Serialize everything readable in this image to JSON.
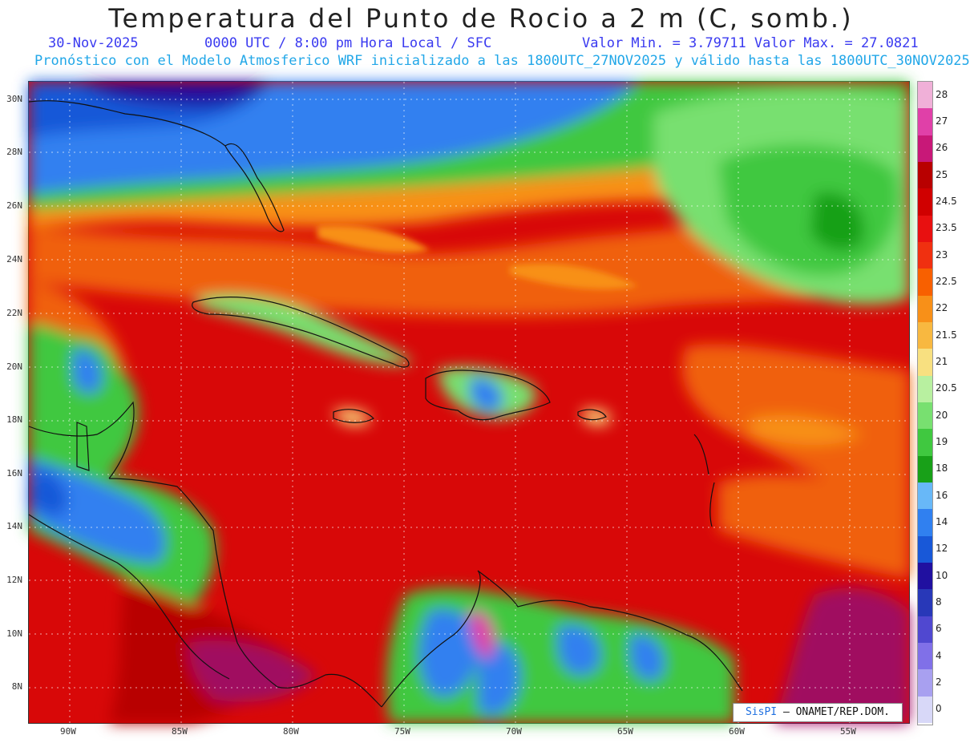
{
  "header": {
    "title": "Temperatura del Punto de Rocio a 2 m (C, somb.)",
    "date": "30-Nov-2025",
    "time_info": "0000 UTC / 8:00 pm Hora Local / SFC",
    "min_max": "Valor Min. = 3.79711  Valor Max. = 27.0821",
    "forecast_info": "Pronóstico con el Modelo Atmosferico WRF inicializado a las 1800UTC_27NOV2025 y válido hasta las  1800UTC_30NOV2025"
  },
  "map": {
    "lat_labels": [
      "30N",
      "28N",
      "26N",
      "24N",
      "22N",
      "20N",
      "18N",
      "16N",
      "14N",
      "12N",
      "10N",
      "8N"
    ],
    "lon_labels": [
      "90W",
      "85W",
      "80W",
      "75W",
      "70W",
      "65W",
      "60W",
      "55W"
    ],
    "credit_brand": "SisPI",
    "credit_text": "– ONAMET/REP.DOM."
  },
  "colorbar": {
    "labels": [
      "28",
      "27",
      "26",
      "25",
      "24.5",
      "23.5",
      "23",
      "22.5",
      "22",
      "21.5",
      "21",
      "20.5",
      "20",
      "19",
      "18",
      "16",
      "14",
      "12",
      "10",
      "8",
      "6",
      "4",
      "2",
      "0"
    ],
    "colors": [
      "#f0b0d8",
      "#e040a8",
      "#c81878",
      "#b80000",
      "#d00000",
      "#e81010",
      "#f03010",
      "#f86000",
      "#f89018",
      "#f8b840",
      "#f8e080",
      "#b8f0a0",
      "#78e070",
      "#40c840",
      "#18a018",
      "#68b8f8",
      "#3080f0",
      "#1858d8",
      "#2010a0",
      "#2838b8",
      "#5048d0",
      "#8070e8",
      "#a8a0f0",
      "#d8d8f8"
    ]
  }
}
